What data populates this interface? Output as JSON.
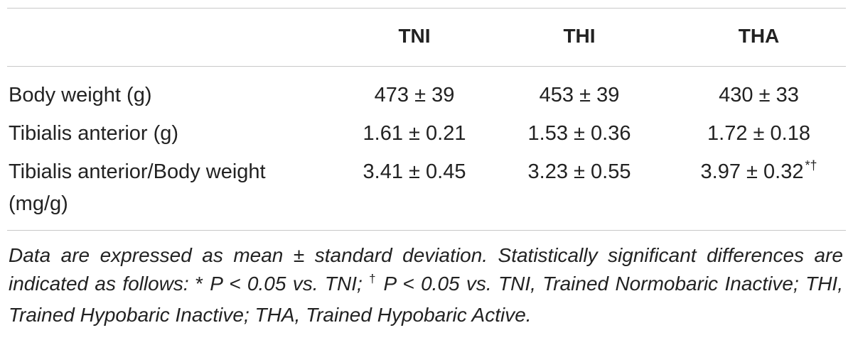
{
  "table": {
    "headers": [
      "",
      "TNI",
      "THI",
      "THA"
    ],
    "rows": [
      {
        "label": "Body weight (g)",
        "values": [
          "473 ± 39",
          "453 ± 39",
          "430 ± 33"
        ]
      },
      {
        "label": "Tibialis anterior (g)",
        "values": [
          "1.61 ± 0.21",
          "1.53 ± 0.36",
          "1.72 ± 0.18"
        ]
      },
      {
        "label_line1": "Tibialis anterior/Body weight",
        "label_line2": "(mg/g)",
        "values": [
          "3.41 ± 0.45",
          "3.23 ± 0.55",
          "3.97 ± 0.32"
        ],
        "thax_marks": "*†"
      }
    ]
  },
  "footnote": {
    "part1": "Data are expressed as mean ± standard deviation. Statistically significant differences are indicated as follows: ",
    "sym1": "*",
    "part2": " P < 0.05 vs. TNI; ",
    "sym2": "†",
    "part3": " P < 0.05 vs. TNI, Trained Normobaric Inactive; THI, Trained Hypobaric Inactive; THA, Trained Hypobaric Active."
  }
}
